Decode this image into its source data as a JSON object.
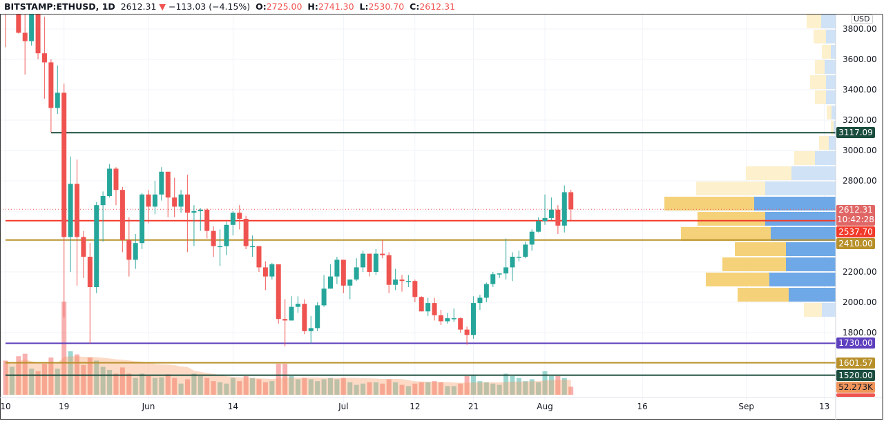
{
  "header": {
    "symbol": "BITSTAMP:ETHUSD, 1D",
    "last": "2612.31",
    "change": "−113.03 (−4.15%)",
    "o_label": "O:",
    "o": "2725.00",
    "h_label": "H:",
    "h": "2741.30",
    "l_label": "L:",
    "l": "2530.70",
    "c_label": "C:",
    "c": "2612.31"
  },
  "currency": "USD",
  "colors": {
    "up": "#26a69a",
    "down": "#ef5350",
    "grid": "#f0f3fa"
  },
  "price_axis": {
    "ticks": [
      3800,
      3600,
      3400,
      3200,
      3000,
      2800,
      2200,
      2000,
      1800
    ],
    "tick_labels": [
      "3800.00",
      "3600.00",
      "3400.00",
      "3200.00",
      "3000.00",
      "2800.00",
      "2200.00",
      "2000.00",
      "1800.00"
    ]
  },
  "time_axis": {
    "labels": [
      {
        "text": "10",
        "day": 0
      },
      {
        "text": "19",
        "day": 9
      },
      {
        "text": "Jun",
        "day": 22
      },
      {
        "text": "14",
        "day": 35
      },
      {
        "text": "Jul",
        "day": 52
      },
      {
        "text": "12",
        "day": 63
      },
      {
        "text": "21",
        "day": 72
      },
      {
        "text": "Aug",
        "day": 83
      },
      {
        "text": "16",
        "day": 98
      },
      {
        "text": "Sep",
        "day": 114
      },
      {
        "text": "13",
        "day": 126
      }
    ]
  },
  "last_price": {
    "price": 2612.31,
    "label": "2612.31",
    "countdown": "10:42:28",
    "color": "#ef5350"
  },
  "levels": [
    {
      "price": 3117.09,
      "label": "3117.09",
      "color": "#1b4d3e",
      "start_day": 7
    },
    {
      "price": 2537.7,
      "label": "2537.70",
      "color": "#f23a2a",
      "start_day": 0
    },
    {
      "price": 2410.0,
      "label": "2410.00",
      "color": "#b8902a",
      "start_day": 0
    },
    {
      "price": 1730.0,
      "label": "1730.00",
      "color": "#5e3fbe",
      "start_day": 0
    },
    {
      "price": 1601.57,
      "label": "1601.57",
      "color": "#b8902a",
      "start_day": 0
    },
    {
      "price": 1520.0,
      "label": "1520.00",
      "color": "#1b4d3e",
      "start_day": 0
    }
  ],
  "volume_labels": [
    {
      "label": "52.273K",
      "color": "#f0955a"
    },
    {
      "label": "",
      "color": "#ef5350"
    }
  ],
  "chart_data": {
    "type": "candlestick",
    "start_date": "May 10",
    "ylim": [
      1700,
      3900
    ],
    "ohlc": [
      [
        3950,
        4200,
        3680,
        3925
      ],
      [
        3925,
        4380,
        3900,
        4170
      ],
      [
        4170,
        4380,
        3770,
        3775
      ],
      [
        3775,
        4030,
        3500,
        3720
      ],
      [
        3720,
        4130,
        3690,
        4075
      ],
      [
        4075,
        4120,
        3600,
        3640
      ],
      [
        3640,
        3880,
        3340,
        3580
      ],
      [
        3580,
        3600,
        3120,
        3280
      ],
      [
        3280,
        3560,
        3240,
        3380
      ],
      [
        3380,
        3440,
        1900,
        2430
      ],
      [
        2430,
        2960,
        2200,
        2780
      ],
      [
        2780,
        2940,
        2110,
        2430
      ],
      [
        2430,
        2470,
        2160,
        2300
      ],
      [
        2300,
        2390,
        1730,
        2100
      ],
      [
        2100,
        2660,
        2060,
        2640
      ],
      [
        2640,
        2730,
        2400,
        2700
      ],
      [
        2700,
        2910,
        2690,
        2880
      ],
      [
        2880,
        2890,
        2640,
        2740
      ],
      [
        2740,
        2760,
        2330,
        2410
      ],
      [
        2410,
        2560,
        2170,
        2280
      ],
      [
        2280,
        2450,
        2220,
        2390
      ],
      [
        2390,
        2720,
        2350,
        2710
      ],
      [
        2710,
        2740,
        2520,
        2630
      ],
      [
        2630,
        2800,
        2580,
        2710
      ],
      [
        2710,
        2890,
        2670,
        2860
      ],
      [
        2860,
        2860,
        2560,
        2690
      ],
      [
        2690,
        2820,
        2560,
        2630
      ],
      [
        2630,
        2740,
        2590,
        2710
      ],
      [
        2710,
        2840,
        2330,
        2590
      ],
      [
        2590,
        2640,
        2370,
        2600
      ],
      [
        2600,
        2620,
        2470,
        2610
      ],
      [
        2610,
        2620,
        2420,
        2470
      ],
      [
        2470,
        2500,
        2300,
        2370
      ],
      [
        2370,
        2480,
        2240,
        2370
      ],
      [
        2370,
        2530,
        2310,
        2510
      ],
      [
        2510,
        2600,
        2440,
        2590
      ],
      [
        2590,
        2640,
        2480,
        2550
      ],
      [
        2550,
        2570,
        2350,
        2370
      ],
      [
        2370,
        2440,
        2300,
        2370
      ],
      [
        2370,
        2370,
        2200,
        2230
      ],
      [
        2230,
        2270,
        2080,
        2170
      ],
      [
        2170,
        2260,
        2150,
        2250
      ],
      [
        2250,
        2250,
        1860,
        1890
      ],
      [
        1890,
        2020,
        1710,
        1880
      ],
      [
        1880,
        2040,
        1880,
        1970
      ],
      [
        1970,
        2040,
        1930,
        1990
      ],
      [
        1990,
        2020,
        1790,
        1810
      ],
      [
        1810,
        1910,
        1730,
        1830
      ],
      [
        1830,
        2000,
        1810,
        1980
      ],
      [
        1980,
        2180,
        1970,
        2090
      ],
      [
        2090,
        2250,
        2090,
        2170
      ],
      [
        2170,
        2300,
        2120,
        2280
      ],
      [
        2280,
        2280,
        2060,
        2110
      ],
      [
        2110,
        2150,
        2020,
        2150
      ],
      [
        2150,
        2290,
        2140,
        2230
      ],
      [
        2230,
        2340,
        2200,
        2320
      ],
      [
        2320,
        2320,
        2170,
        2200
      ],
      [
        2200,
        2350,
        2180,
        2320
      ],
      [
        2320,
        2410,
        2290,
        2310
      ],
      [
        2310,
        2330,
        2060,
        2115
      ],
      [
        2115,
        2220,
        2080,
        2150
      ],
      [
        2150,
        2180,
        2070,
        2140
      ],
      [
        2140,
        2180,
        2100,
        2140
      ],
      [
        2140,
        2150,
        2000,
        2035
      ],
      [
        2035,
        2040,
        1940,
        1940
      ],
      [
        1940,
        2030,
        1910,
        1995
      ],
      [
        1995,
        2030,
        1880,
        1915
      ],
      [
        1915,
        1950,
        1850,
        1875
      ],
      [
        1875,
        1930,
        1860,
        1895
      ],
      [
        1895,
        1960,
        1870,
        1895
      ],
      [
        1895,
        1900,
        1800,
        1820
      ],
      [
        1820,
        1840,
        1720,
        1785
      ],
      [
        1785,
        2040,
        1760,
        1995
      ],
      [
        1995,
        2050,
        1950,
        2030
      ],
      [
        2030,
        2130,
        2000,
        2120
      ],
      [
        2120,
        2200,
        2100,
        2185
      ],
      [
        2185,
        2190,
        2160,
        2190
      ],
      [
        2190,
        2420,
        2150,
        2230
      ],
      [
        2230,
        2330,
        2140,
        2300
      ],
      [
        2300,
        2340,
        2270,
        2300
      ],
      [
        2300,
        2400,
        2290,
        2380
      ],
      [
        2380,
        2480,
        2340,
        2465
      ],
      [
        2465,
        2560,
        2460,
        2535
      ],
      [
        2535,
        2710,
        2510,
        2555
      ],
      [
        2555,
        2690,
        2540,
        2610
      ],
      [
        2610,
        2640,
        2450,
        2505
      ],
      [
        2505,
        2770,
        2460,
        2725
      ],
      [
        2725,
        2741.3,
        2530.7,
        2612.31
      ]
    ],
    "volume": [
      55,
      45,
      62,
      66,
      42,
      38,
      50,
      60,
      42,
      150,
      70,
      65,
      48,
      60,
      55,
      45,
      40,
      34,
      44,
      34,
      27,
      34,
      30,
      27,
      28,
      33,
      27,
      18,
      25,
      34,
      30,
      27,
      22,
      20,
      18,
      27,
      22,
      30,
      27,
      25,
      20,
      22,
      50,
      50,
      30,
      25,
      27,
      25,
      22,
      25,
      27,
      25,
      27,
      20,
      16,
      18,
      20,
      20,
      18,
      25,
      20,
      16,
      14,
      18,
      20,
      20,
      22,
      20,
      14,
      14,
      18,
      30,
      32,
      22,
      20,
      18,
      16,
      34,
      30,
      27,
      22,
      25,
      20,
      38,
      30,
      30,
      27,
      13
    ],
    "volume_profile": {
      "value_area": [
        2000,
        2700
      ],
      "rows": [
        {
          "low": 3800,
          "high": 3900,
          "up": 21,
          "down": 21
        },
        {
          "low": 3700,
          "high": 3800,
          "up": 14,
          "down": 18
        },
        {
          "low": 3600,
          "high": 3700,
          "up": 7,
          "down": 13
        },
        {
          "low": 3500,
          "high": 3600,
          "up": 16,
          "down": 14
        },
        {
          "low": 3400,
          "high": 3500,
          "up": 14,
          "down": 23
        },
        {
          "low": 3300,
          "high": 3400,
          "up": 14,
          "down": 16
        },
        {
          "low": 3200,
          "high": 3300,
          "up": 6,
          "down": 7
        },
        {
          "low": 3100,
          "high": 3200,
          "up": 3,
          "down": 4
        },
        {
          "low": 3000,
          "high": 3100,
          "up": 10,
          "down": 14
        },
        {
          "low": 2900,
          "high": 3000,
          "up": 30,
          "down": 30
        },
        {
          "low": 2800,
          "high": 2900,
          "up": 64,
          "down": 66
        },
        {
          "low": 2700,
          "high": 2800,
          "up": 102,
          "down": 100
        },
        {
          "low": 2600,
          "high": 2700,
          "up": 118,
          "down": 130
        },
        {
          "low": 2500,
          "high": 2600,
          "up": 102,
          "down": 98
        },
        {
          "low": 2400,
          "high": 2500,
          "up": 94,
          "down": 130
        },
        {
          "low": 2300,
          "high": 2400,
          "up": 72,
          "down": 74
        },
        {
          "low": 2200,
          "high": 2300,
          "up": 72,
          "down": 92
        },
        {
          "low": 2100,
          "high": 2200,
          "up": 96,
          "down": 92
        },
        {
          "low": 2000,
          "high": 2100,
          "up": 68,
          "down": 74
        },
        {
          "low": 1900,
          "high": 2000,
          "up": 20,
          "down": 26
        },
        {
          "low": 1800,
          "high": 1900,
          "up": 0,
          "down": 0
        }
      ]
    }
  }
}
